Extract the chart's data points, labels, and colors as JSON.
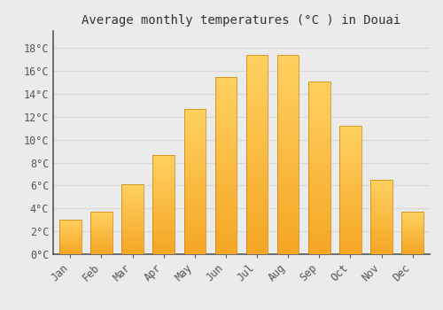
{
  "months": [
    "Jan",
    "Feb",
    "Mar",
    "Apr",
    "May",
    "Jun",
    "Jul",
    "Aug",
    "Sep",
    "Oct",
    "Nov",
    "Dec"
  ],
  "values": [
    3.0,
    3.7,
    6.1,
    8.7,
    12.7,
    15.5,
    17.4,
    17.4,
    15.1,
    11.2,
    6.5,
    3.7
  ],
  "bar_color": "#FFA500",
  "bar_edge_color": "#C87800",
  "title": "Average monthly temperatures (°C ) in Douai",
  "ylim": [
    0,
    19.5
  ],
  "yticks": [
    0,
    2,
    4,
    6,
    8,
    10,
    12,
    14,
    16,
    18
  ],
  "background_color": "#EBEBEB",
  "plot_bg_color": "#EBEBEB",
  "grid_color": "#D8D8D8",
  "title_fontsize": 10,
  "tick_fontsize": 8.5,
  "bar_width": 0.7,
  "spine_color": "#555555"
}
